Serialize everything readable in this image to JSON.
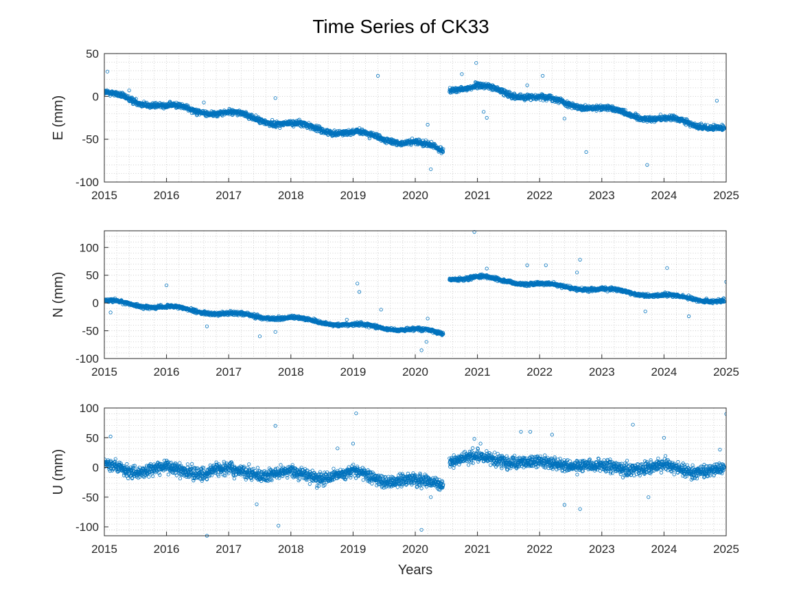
{
  "chart_data": {
    "type": "scatter",
    "title": "Time Series of CK33",
    "xlabel": "Years",
    "marker": "open-circle",
    "marker_color": "#0072BD",
    "grid": "dotted-major-and-minor",
    "xlim": [
      2015,
      2025
    ],
    "xticks": [
      "2015",
      "2016",
      "2017",
      "2018",
      "2019",
      "2020",
      "2021",
      "2022",
      "2023",
      "2024",
      "2025"
    ],
    "panels": [
      {
        "name": "E",
        "ylabel": "E (mm)",
        "ylim": [
          -100,
          50
        ],
        "yticks": [
          "50",
          "0",
          "-50",
          "-100"
        ],
        "trend_segments": [
          {
            "x": [
              2015.0,
              2016.0,
              2017.0,
              2018.0,
              2019.0,
              2020.0,
              2020.45
            ],
            "y": [
              3,
              -12,
              -20,
              -33,
              -43,
              -55,
              -63
            ]
          },
          {
            "x": [
              2020.55,
              2021.0,
              2022.0,
              2023.0,
              2024.0,
              2024.97
            ],
            "y": [
              10,
              11,
              -2,
              -15,
              -27,
              -37
            ]
          }
        ],
        "outliers": [
          {
            "x": 2015.05,
            "y": 29
          },
          {
            "x": 2015.4,
            "y": 7
          },
          {
            "x": 2016.6,
            "y": -7
          },
          {
            "x": 2017.75,
            "y": -2
          },
          {
            "x": 2019.4,
            "y": 24
          },
          {
            "x": 2020.25,
            "y": -85
          },
          {
            "x": 2020.2,
            "y": -33
          },
          {
            "x": 2020.75,
            "y": 26
          },
          {
            "x": 2020.98,
            "y": 39
          },
          {
            "x": 2021.15,
            "y": -25
          },
          {
            "x": 2021.1,
            "y": -18
          },
          {
            "x": 2021.8,
            "y": 13
          },
          {
            "x": 2022.05,
            "y": 24
          },
          {
            "x": 2022.4,
            "y": -26
          },
          {
            "x": 2022.75,
            "y": -65
          },
          {
            "x": 2023.73,
            "y": -80
          },
          {
            "x": 2024.85,
            "y": -5
          }
        ]
      },
      {
        "name": "N",
        "ylabel": "N (mm)",
        "ylim": [
          -100,
          130
        ],
        "yticks": [
          "100",
          "50",
          "0",
          "-50",
          "-100"
        ],
        "trend_segments": [
          {
            "x": [
              2015.0,
              2016.0,
              2017.0,
              2018.0,
              2019.0,
              2020.0,
              2020.45
            ],
            "y": [
              3,
              -8,
              -20,
              -28,
              -40,
              -48,
              -55
            ]
          },
          {
            "x": [
              2020.55,
              2021.0,
              2022.0,
              2023.0,
              2024.0,
              2024.97
            ],
            "y": [
              45,
              46,
              33,
              24,
              13,
              3
            ]
          }
        ],
        "outliers": [
          {
            "x": 2015.1,
            "y": -17
          },
          {
            "x": 2016.0,
            "y": 32
          },
          {
            "x": 2016.65,
            "y": -42
          },
          {
            "x": 2017.5,
            "y": -60
          },
          {
            "x": 2017.75,
            "y": -52
          },
          {
            "x": 2018.9,
            "y": -30
          },
          {
            "x": 2019.07,
            "y": 35
          },
          {
            "x": 2019.1,
            "y": 20
          },
          {
            "x": 2019.45,
            "y": -12
          },
          {
            "x": 2020.1,
            "y": -85
          },
          {
            "x": 2020.18,
            "y": -70
          },
          {
            "x": 2020.2,
            "y": -28
          },
          {
            "x": 2020.95,
            "y": 128
          },
          {
            "x": 2021.15,
            "y": 62
          },
          {
            "x": 2021.8,
            "y": 68
          },
          {
            "x": 2022.1,
            "y": 68
          },
          {
            "x": 2022.65,
            "y": 78
          },
          {
            "x": 2022.6,
            "y": 55
          },
          {
            "x": 2023.7,
            "y": -15
          },
          {
            "x": 2024.05,
            "y": 63
          },
          {
            "x": 2024.4,
            "y": -24
          },
          {
            "x": 2025.0,
            "y": 38
          }
        ]
      },
      {
        "name": "U",
        "ylabel": "U (mm)",
        "ylim": [
          -115,
          100
        ],
        "yticks": [
          "100",
          "50",
          "0",
          "-50",
          "-100"
        ],
        "trend_segments": [
          {
            "x": [
              2015.0,
              2015.5,
              2016.0,
              2016.5,
              2017.0,
              2017.5,
              2018.0,
              2018.5,
              2019.0,
              2019.5,
              2020.0,
              2020.45
            ],
            "y": [
              8,
              -10,
              3,
              -12,
              0,
              -15,
              -5,
              -20,
              -5,
              -25,
              -20,
              -30
            ]
          },
          {
            "x": [
              2020.55,
              2021.0,
              2021.5,
              2022.0,
              2022.5,
              2023.0,
              2023.5,
              2024.0,
              2024.5,
              2024.97
            ],
            "y": [
              10,
              20,
              8,
              10,
              2,
              3,
              -5,
              5,
              -10,
              0
            ]
          }
        ],
        "outliers": [
          {
            "x": 2015.1,
            "y": 52
          },
          {
            "x": 2016.65,
            "y": -115
          },
          {
            "x": 2017.45,
            "y": -62
          },
          {
            "x": 2017.75,
            "y": 70
          },
          {
            "x": 2017.8,
            "y": -98
          },
          {
            "x": 2018.75,
            "y": 32
          },
          {
            "x": 2019.05,
            "y": 91
          },
          {
            "x": 2019.0,
            "y": 40
          },
          {
            "x": 2020.1,
            "y": -105
          },
          {
            "x": 2020.25,
            "y": -50
          },
          {
            "x": 2020.95,
            "y": 48
          },
          {
            "x": 2021.05,
            "y": 40
          },
          {
            "x": 2021.7,
            "y": 60
          },
          {
            "x": 2021.85,
            "y": 60
          },
          {
            "x": 2022.2,
            "y": 55
          },
          {
            "x": 2022.4,
            "y": -63
          },
          {
            "x": 2022.65,
            "y": -70
          },
          {
            "x": 2023.5,
            "y": 72
          },
          {
            "x": 2023.75,
            "y": -50
          },
          {
            "x": 2024.0,
            "y": 50
          },
          {
            "x": 2024.9,
            "y": 30
          },
          {
            "x": 2025.0,
            "y": 90
          }
        ]
      }
    ]
  }
}
